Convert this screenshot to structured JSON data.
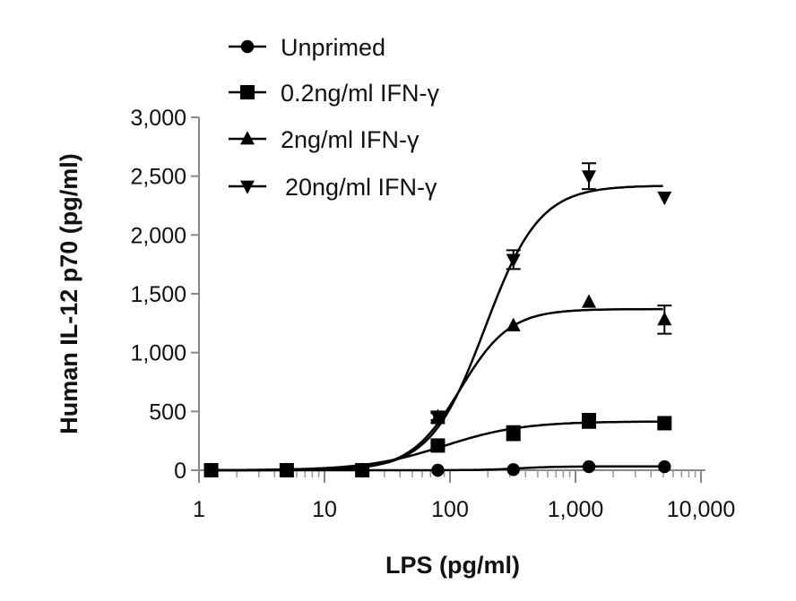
{
  "chart_data": {
    "type": "line",
    "title": "",
    "xlabel": "LPS (pg/ml)",
    "ylabel": "Human IL-12 p70 (pg/ml)",
    "xscale": "log",
    "xlim": [
      1,
      10000
    ],
    "ylim": [
      0,
      3000
    ],
    "xticks": [
      1,
      10,
      100,
      1000,
      10000
    ],
    "xtick_labels": [
      "1",
      "10",
      "100",
      "1,000",
      "10,000"
    ],
    "yticks": [
      0,
      500,
      1000,
      1500,
      2000,
      2500,
      3000
    ],
    "ytick_labels": [
      "0",
      "500",
      "1,000",
      "1,500",
      "2,000",
      "2,500",
      "3,000"
    ],
    "legend_position": "top-left",
    "x": [
      1.25,
      5,
      20,
      80,
      320,
      1280,
      5120
    ],
    "series": [
      {
        "name": "Unprimed",
        "marker": "circle",
        "values": [
          0,
          0,
          0,
          0,
          5,
          30,
          30
        ],
        "errors": [
          0,
          0,
          0,
          0,
          0,
          0,
          0
        ],
        "fit": {
          "top": 32,
          "ec50": 350,
          "hill": 3
        }
      },
      {
        "name": "0.2ng/ml IFN-γ",
        "marker": "square",
        "values": [
          0,
          0,
          0,
          210,
          315,
          420,
          400
        ],
        "errors": [
          0,
          0,
          0,
          20,
          60,
          60,
          0
        ],
        "fit": {
          "top": 415,
          "ec50": 90,
          "hill": 1.4
        }
      },
      {
        "name": "2ng/ml IFN-γ",
        "marker": "triangle-up",
        "values": [
          0,
          0,
          0,
          455,
          1230,
          1430,
          1280
        ],
        "errors": [
          0,
          0,
          0,
          30,
          0,
          0,
          120
        ],
        "fit": {
          "top": 1370,
          "ec50": 120,
          "hill": 2.2
        }
      },
      {
        "name": "20ng/ml IFN-γ",
        "marker": "triangle-down",
        "values": [
          0,
          0,
          0,
          450,
          1790,
          2500,
          2320
        ],
        "errors": [
          0,
          0,
          0,
          50,
          80,
          110,
          0
        ],
        "fit": {
          "top": 2420,
          "ec50": 190,
          "hill": 2.0
        }
      }
    ]
  }
}
